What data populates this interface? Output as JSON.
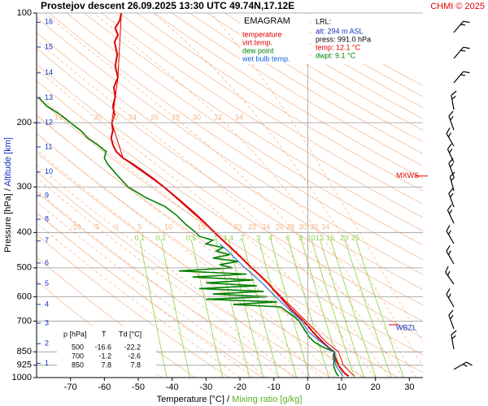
{
  "chart_data": {
    "type": "emagram",
    "title": "Prostejov   descent   26.09.2025 13:30 UTC  49.74N,17.12E",
    "credit": "CHMI © 2025",
    "y_label": "Pressure [hPa]  /  ",
    "altitude_label": "Altitude [km]",
    "x_label": "Temperature [°C]  /  ",
    "mixing_label": "Mixing ratio [g/kg]",
    "yscale": "log",
    "ylim": [
      1000,
      100
    ],
    "yticks": [
      100,
      200,
      300,
      400,
      500,
      600,
      700,
      850,
      925,
      1000
    ],
    "grid": true,
    "xlim": [
      -80,
      34
    ],
    "xticks": [
      -70,
      -60,
      -50,
      -40,
      -30,
      -20,
      -10,
      0,
      10,
      20,
      30
    ],
    "vertical_grid": [
      0
    ],
    "altitude_ticks": {
      "km": [
        1,
        2,
        3,
        4,
        5,
        6,
        7,
        8,
        9,
        10,
        11,
        12,
        13,
        14,
        15,
        16
      ],
      "pressure": [
        914,
        807,
        709,
        630,
        554,
        485,
        422,
        368,
        317,
        273,
        233,
        200,
        171,
        146,
        124,
        106
      ],
      "color": "#1030c0"
    },
    "mixing_ratio_lines": {
      "values": [
        0.1,
        0.2,
        0.5,
        1,
        1.4,
        2,
        3,
        4,
        6,
        8,
        10,
        12,
        15,
        20,
        25
      ],
      "color": "#8cd040"
    },
    "adiabat_labels_400": [
      -10,
      -5,
      0,
      5,
      10,
      15,
      20,
      22,
      24,
      26,
      28,
      30,
      32,
      34
    ],
    "adiabat_labels_200": [
      15,
      20,
      22,
      24,
      26,
      28,
      30,
      32,
      34
    ],
    "adiabat_color": "#f5b48a",
    "legend_title": "EMAGRAM",
    "series": [
      {
        "name": "temperature",
        "color": "#e00000",
        "pressure": [
          991,
          975,
          950,
          925,
          900,
          875,
          850,
          825,
          800,
          775,
          750,
          725,
          700,
          675,
          650,
          625,
          600,
          575,
          550,
          525,
          500,
          475,
          450,
          425,
          400,
          375,
          350,
          325,
          300,
          285,
          270,
          260,
          250,
          240,
          230,
          220,
          210,
          200,
          190,
          180,
          170,
          160,
          150,
          140,
          130,
          120,
          115,
          110,
          105,
          100
        ],
        "values": [
          12.1,
          11.0,
          10.0,
          9.0,
          8.5,
          8.0,
          7.8,
          6.0,
          4.5,
          3.0,
          1.5,
          0.2,
          -1.2,
          -3.0,
          -4.8,
          -6.5,
          -8.2,
          -10.0,
          -11.8,
          -14.0,
          -16.6,
          -19.0,
          -21.6,
          -24.5,
          -27.5,
          -30.5,
          -34.0,
          -38.0,
          -42.5,
          -45.5,
          -49.0,
          -51.5,
          -54.5,
          -56.5,
          -57.5,
          -58.0,
          -57.5,
          -57.8,
          -57.0,
          -57.5,
          -56.8,
          -57.2,
          -56.0,
          -56.8,
          -56.2,
          -57.0,
          -56.0,
          -56.8,
          -55.5,
          -55.0
        ]
      },
      {
        "name": "virt.temp.",
        "color": "#e00000",
        "pressure": [
          991,
          925,
          850,
          800,
          700,
          600,
          500,
          400,
          300,
          250,
          200,
          150,
          100
        ],
        "values": [
          13.7,
          10.5,
          9.1,
          5.5,
          -0.5,
          -7.8,
          -16.4,
          -27.4,
          -42.5,
          -54.5,
          -57.8,
          -56.0,
          -55.0
        ]
      },
      {
        "name": "dew point",
        "color": "#008000",
        "pressure": [
          991,
          975,
          950,
          925,
          900,
          875,
          850,
          825,
          800,
          775,
          750,
          725,
          700,
          680,
          660,
          650,
          640,
          630,
          620,
          610,
          600,
          590,
          580,
          570,
          560,
          550,
          540,
          530,
          520,
          510,
          500,
          490,
          480,
          470,
          460,
          450,
          440,
          430,
          420,
          410,
          400,
          380,
          360,
          340,
          320,
          300,
          280,
          260,
          250,
          240,
          230,
          220,
          210,
          200,
          190,
          180,
          170
        ],
        "values": [
          9.1,
          8.5,
          8.0,
          7.6,
          7.8,
          7.5,
          7.8,
          4.5,
          2.0,
          0.5,
          -0.5,
          -1.5,
          -2.6,
          -4.0,
          -6.0,
          -7.0,
          -8.0,
          -22.0,
          -9.0,
          -30.0,
          -12.0,
          -28.0,
          -13.0,
          -32.0,
          -15.0,
          -30.0,
          -16.0,
          -34.0,
          -18.0,
          -38.0,
          -22.2,
          -26.0,
          -20.5,
          -28.0,
          -23.0,
          -27.0,
          -25.0,
          -30.0,
          -28.0,
          -32.0,
          -33.0,
          -36.0,
          -38.5,
          -42.0,
          -48.0,
          -53.0,
          -56.0,
          -59.0,
          -60.0,
          -59.5,
          -62.0,
          -65.0,
          -67.0,
          -70.0,
          -73.0,
          -77.0,
          -79.5
        ]
      },
      {
        "name": "wet bulb temp.",
        "color": "#1060e0",
        "pressure": [
          991,
          925,
          850,
          800,
          750,
          700,
          650,
          600,
          550,
          500,
          470,
          450,
          430
        ],
        "values": [
          10.4,
          8.2,
          7.8,
          4.0,
          0.3,
          -1.8,
          -5.5,
          -9.5,
          -13.5,
          -18.5,
          -21.5,
          -23.5,
          -26.0
        ]
      }
    ],
    "surface": {
      "title": "LRL:",
      "lines": [
        {
          "text": "alt: 294 m ASL",
          "color": "#1030c0"
        },
        {
          "text": "press: 991.0 hPa",
          "color": "#000000"
        },
        {
          "text": "temp: 12.1 °C",
          "color": "#e00000"
        },
        {
          "text": "dwpt: 9.1 °C",
          "color": "#008000"
        }
      ]
    },
    "table": {
      "header": [
        "p [hPa]",
        "T",
        "Td [°C]"
      ],
      "rows": [
        [
          500,
          -16.6,
          -22.2
        ],
        [
          700,
          -1.2,
          -2.6
        ],
        [
          850,
          7.8,
          7.8
        ]
      ]
    },
    "annotations": [
      {
        "text": "MXWS",
        "pressure": 280,
        "color": "#e00000"
      },
      {
        "text": "WBZL",
        "pressure": 731,
        "color": "#1030c0"
      }
    ]
  }
}
